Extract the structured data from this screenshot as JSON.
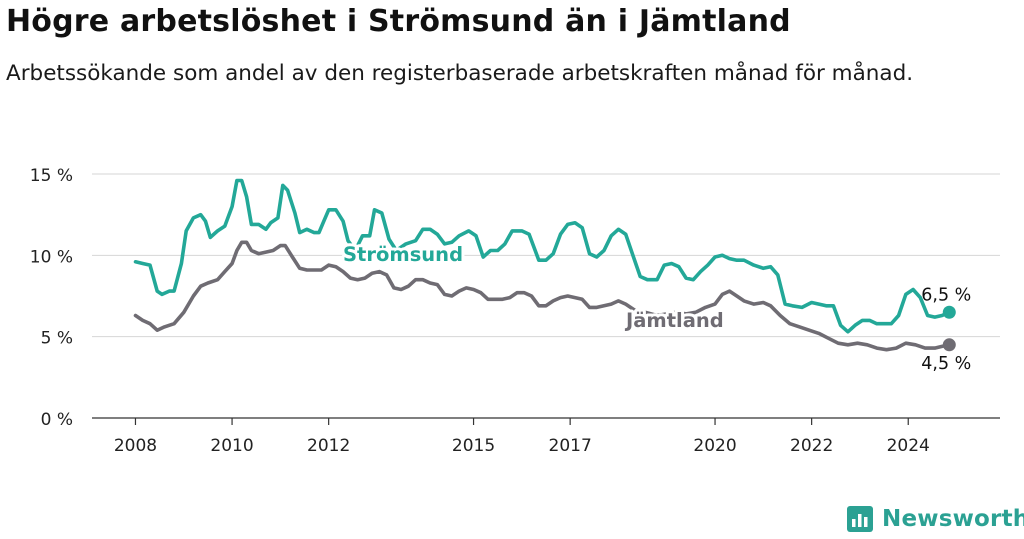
{
  "header": {
    "title": "Högre arbetslöshet i Strömsund än i Jämtland",
    "subtitle": "Arbetssökande som andel av den registerbaserade arbetskraften månad för månad."
  },
  "brand": {
    "name": "Newsworthy",
    "icon": "newsworthy-logo-icon",
    "color": "#2ba193"
  },
  "chart_data": {
    "type": "line",
    "title": "Högre arbetslöshet i Strömsund än i Jämtland",
    "subtitle": "Arbetssökande som andel av den registerbaserade arbetskraften månad för månad.",
    "xlabel": "",
    "ylabel": "",
    "x_ticks": [
      {
        "label": "2008",
        "value": 2008
      },
      {
        "label": "2010",
        "value": 2010
      },
      {
        "label": "2012",
        "value": 2012
      },
      {
        "label": "2015",
        "value": 2015
      },
      {
        "label": "2017",
        "value": 2017
      },
      {
        "label": "2020",
        "value": 2020
      },
      {
        "label": "2022",
        "value": 2022
      },
      {
        "label": "2024",
        "value": 2024
      }
    ],
    "y_ticks": [
      {
        "label": "0 %",
        "value": 0
      },
      {
        "label": "5 %",
        "value": 5
      },
      {
        "label": "10 %",
        "value": 10
      },
      {
        "label": "15 %",
        "value": 15
      }
    ],
    "xlim": [
      2007.1,
      2025.9
    ],
    "ylim": [
      0,
      15
    ],
    "grid": true,
    "series": [
      {
        "name": "Strömsund",
        "color": "#23a898",
        "end_label": "6,5 %",
        "points": [
          [
            2008.0,
            9.6
          ],
          [
            2008.15,
            9.5
          ],
          [
            2008.3,
            9.4
          ],
          [
            2008.45,
            7.8
          ],
          [
            2008.55,
            7.6
          ],
          [
            2008.7,
            7.8
          ],
          [
            2008.8,
            7.8
          ],
          [
            2008.95,
            9.5
          ],
          [
            2009.05,
            11.5
          ],
          [
            2009.2,
            12.3
          ],
          [
            2009.35,
            12.5
          ],
          [
            2009.45,
            12.1
          ],
          [
            2009.55,
            11.1
          ],
          [
            2009.7,
            11.5
          ],
          [
            2009.85,
            11.8
          ],
          [
            2010.0,
            13.0
          ],
          [
            2010.1,
            14.6
          ],
          [
            2010.2,
            14.6
          ],
          [
            2010.3,
            13.6
          ],
          [
            2010.4,
            11.9
          ],
          [
            2010.55,
            11.9
          ],
          [
            2010.7,
            11.6
          ],
          [
            2010.8,
            12.0
          ],
          [
            2010.95,
            12.3
          ],
          [
            2011.05,
            14.3
          ],
          [
            2011.15,
            14.0
          ],
          [
            2011.3,
            12.6
          ],
          [
            2011.4,
            11.4
          ],
          [
            2011.55,
            11.6
          ],
          [
            2011.7,
            11.4
          ],
          [
            2011.8,
            11.4
          ],
          [
            2011.9,
            12.1
          ],
          [
            2012.0,
            12.8
          ],
          [
            2012.15,
            12.8
          ],
          [
            2012.3,
            12.1
          ],
          [
            2012.4,
            10.9
          ],
          [
            2012.55,
            10.3
          ],
          [
            2012.7,
            11.2
          ],
          [
            2012.85,
            11.2
          ],
          [
            2012.95,
            12.8
          ],
          [
            2013.1,
            12.6
          ],
          [
            2013.25,
            11.0
          ],
          [
            2013.4,
            10.3
          ],
          [
            2013.6,
            10.7
          ],
          [
            2013.8,
            10.9
          ],
          [
            2013.95,
            11.6
          ],
          [
            2014.1,
            11.6
          ],
          [
            2014.25,
            11.3
          ],
          [
            2014.4,
            10.7
          ],
          [
            2014.55,
            10.8
          ],
          [
            2014.7,
            11.2
          ],
          [
            2014.9,
            11.5
          ],
          [
            2015.05,
            11.2
          ],
          [
            2015.2,
            9.9
          ],
          [
            2015.35,
            10.3
          ],
          [
            2015.5,
            10.3
          ],
          [
            2015.65,
            10.7
          ],
          [
            2015.8,
            11.5
          ],
          [
            2016.0,
            11.5
          ],
          [
            2016.15,
            11.3
          ],
          [
            2016.35,
            9.7
          ],
          [
            2016.5,
            9.7
          ],
          [
            2016.65,
            10.1
          ],
          [
            2016.8,
            11.3
          ],
          [
            2016.95,
            11.9
          ],
          [
            2017.1,
            12.0
          ],
          [
            2017.25,
            11.7
          ],
          [
            2017.4,
            10.1
          ],
          [
            2017.55,
            9.9
          ],
          [
            2017.7,
            10.3
          ],
          [
            2017.85,
            11.2
          ],
          [
            2018.0,
            11.6
          ],
          [
            2018.15,
            11.3
          ],
          [
            2018.3,
            10.0
          ],
          [
            2018.45,
            8.7
          ],
          [
            2018.6,
            8.5
          ],
          [
            2018.8,
            8.5
          ],
          [
            2018.95,
            9.4
          ],
          [
            2019.1,
            9.5
          ],
          [
            2019.25,
            9.3
          ],
          [
            2019.4,
            8.6
          ],
          [
            2019.55,
            8.5
          ],
          [
            2019.7,
            9.0
          ],
          [
            2019.85,
            9.4
          ],
          [
            2020.0,
            9.9
          ],
          [
            2020.15,
            10.0
          ],
          [
            2020.3,
            9.8
          ],
          [
            2020.45,
            9.7
          ],
          [
            2020.6,
            9.7
          ],
          [
            2020.8,
            9.4
          ],
          [
            2021.0,
            9.2
          ],
          [
            2021.15,
            9.3
          ],
          [
            2021.3,
            8.8
          ],
          [
            2021.45,
            7.0
          ],
          [
            2021.6,
            6.9
          ],
          [
            2021.8,
            6.8
          ],
          [
            2022.0,
            7.1
          ],
          [
            2022.15,
            7.0
          ],
          [
            2022.3,
            6.9
          ],
          [
            2022.45,
            6.9
          ],
          [
            2022.6,
            5.7
          ],
          [
            2022.75,
            5.3
          ],
          [
            2022.9,
            5.7
          ],
          [
            2023.05,
            6.0
          ],
          [
            2023.2,
            6.0
          ],
          [
            2023.35,
            5.8
          ],
          [
            2023.5,
            5.8
          ],
          [
            2023.65,
            5.8
          ],
          [
            2023.8,
            6.3
          ],
          [
            2023.95,
            7.6
          ],
          [
            2024.1,
            7.9
          ],
          [
            2024.25,
            7.4
          ],
          [
            2024.4,
            6.3
          ],
          [
            2024.55,
            6.2
          ],
          [
            2024.7,
            6.3
          ],
          [
            2024.85,
            6.5
          ]
        ]
      },
      {
        "name": "Jämtland",
        "color": "#6f6c73",
        "end_label": "4,5 %",
        "points": [
          [
            2008.0,
            6.3
          ],
          [
            2008.15,
            6.0
          ],
          [
            2008.3,
            5.8
          ],
          [
            2008.45,
            5.4
          ],
          [
            2008.6,
            5.6
          ],
          [
            2008.8,
            5.8
          ],
          [
            2009.0,
            6.5
          ],
          [
            2009.2,
            7.5
          ],
          [
            2009.35,
            8.1
          ],
          [
            2009.5,
            8.3
          ],
          [
            2009.7,
            8.5
          ],
          [
            2009.85,
            9.0
          ],
          [
            2010.0,
            9.5
          ],
          [
            2010.1,
            10.3
          ],
          [
            2010.2,
            10.8
          ],
          [
            2010.3,
            10.8
          ],
          [
            2010.4,
            10.3
          ],
          [
            2010.55,
            10.1
          ],
          [
            2010.7,
            10.2
          ],
          [
            2010.85,
            10.3
          ],
          [
            2011.0,
            10.6
          ],
          [
            2011.1,
            10.6
          ],
          [
            2011.25,
            9.9
          ],
          [
            2011.4,
            9.2
          ],
          [
            2011.55,
            9.1
          ],
          [
            2011.7,
            9.1
          ],
          [
            2011.85,
            9.1
          ],
          [
            2012.0,
            9.4
          ],
          [
            2012.15,
            9.3
          ],
          [
            2012.3,
            9.0
          ],
          [
            2012.45,
            8.6
          ],
          [
            2012.6,
            8.5
          ],
          [
            2012.75,
            8.6
          ],
          [
            2012.9,
            8.9
          ],
          [
            2013.05,
            9.0
          ],
          [
            2013.2,
            8.8
          ],
          [
            2013.35,
            8.0
          ],
          [
            2013.5,
            7.9
          ],
          [
            2013.65,
            8.1
          ],
          [
            2013.8,
            8.5
          ],
          [
            2013.95,
            8.5
          ],
          [
            2014.1,
            8.3
          ],
          [
            2014.25,
            8.2
          ],
          [
            2014.4,
            7.6
          ],
          [
            2014.55,
            7.5
          ],
          [
            2014.7,
            7.8
          ],
          [
            2014.85,
            8.0
          ],
          [
            2015.0,
            7.9
          ],
          [
            2015.15,
            7.7
          ],
          [
            2015.3,
            7.3
          ],
          [
            2015.45,
            7.3
          ],
          [
            2015.6,
            7.3
          ],
          [
            2015.75,
            7.4
          ],
          [
            2015.9,
            7.7
          ],
          [
            2016.05,
            7.7
          ],
          [
            2016.2,
            7.5
          ],
          [
            2016.35,
            6.9
          ],
          [
            2016.5,
            6.9
          ],
          [
            2016.65,
            7.2
          ],
          [
            2016.8,
            7.4
          ],
          [
            2016.95,
            7.5
          ],
          [
            2017.1,
            7.4
          ],
          [
            2017.25,
            7.3
          ],
          [
            2017.4,
            6.8
          ],
          [
            2017.55,
            6.8
          ],
          [
            2017.7,
            6.9
          ],
          [
            2017.85,
            7.0
          ],
          [
            2018.0,
            7.2
          ],
          [
            2018.15,
            7.0
          ],
          [
            2018.35,
            6.6
          ],
          [
            2018.55,
            6.5
          ],
          [
            2018.8,
            6.3
          ],
          [
            2019.0,
            6.4
          ],
          [
            2019.2,
            6.5
          ],
          [
            2019.4,
            6.4
          ],
          [
            2019.6,
            6.5
          ],
          [
            2019.8,
            6.8
          ],
          [
            2020.0,
            7.0
          ],
          [
            2020.15,
            7.6
          ],
          [
            2020.3,
            7.8
          ],
          [
            2020.45,
            7.5
          ],
          [
            2020.6,
            7.2
          ],
          [
            2020.8,
            7.0
          ],
          [
            2021.0,
            7.1
          ],
          [
            2021.15,
            6.9
          ],
          [
            2021.35,
            6.3
          ],
          [
            2021.55,
            5.8
          ],
          [
            2021.75,
            5.6
          ],
          [
            2021.95,
            5.4
          ],
          [
            2022.15,
            5.2
          ],
          [
            2022.35,
            4.9
          ],
          [
            2022.55,
            4.6
          ],
          [
            2022.75,
            4.5
          ],
          [
            2022.95,
            4.6
          ],
          [
            2023.15,
            4.5
          ],
          [
            2023.35,
            4.3
          ],
          [
            2023.55,
            4.2
          ],
          [
            2023.75,
            4.3
          ],
          [
            2023.95,
            4.6
          ],
          [
            2024.15,
            4.5
          ],
          [
            2024.35,
            4.3
          ],
          [
            2024.55,
            4.3
          ],
          [
            2024.7,
            4.4
          ],
          [
            2024.85,
            4.5
          ]
        ]
      }
    ],
    "inline_labels": [
      {
        "series": "Strömsund",
        "text": "Strömsund"
      },
      {
        "series": "Jämtland",
        "text": "Jämtland"
      }
    ]
  }
}
